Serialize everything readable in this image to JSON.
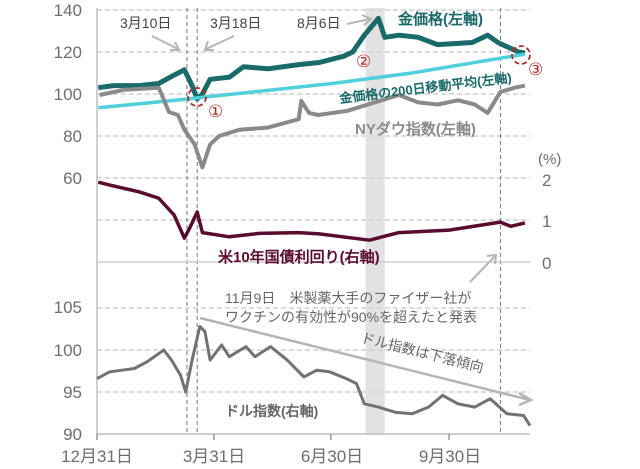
{
  "chart_data": {
    "type": "line",
    "grid": true,
    "x_axis": {
      "type": "date",
      "range": [
        "12/31",
        "12/2"
      ],
      "tick_labels": [
        "12月31日",
        "3月31日",
        "6月30日",
        "9月30日"
      ],
      "tick_dates": [
        "12/31",
        "3/31",
        "6/30",
        "9/30"
      ]
    },
    "left_axis": {
      "range": [
        20,
        140
      ],
      "tick_labels": [
        "140",
        "120",
        "100",
        "80",
        "60"
      ],
      "tick_values": [
        140,
        120,
        100,
        80,
        60
      ]
    },
    "right_axis": {
      "unit_label": "(%)",
      "range": [
        0,
        2
      ],
      "tick_labels": [
        "2",
        "1",
        "0"
      ],
      "tick_values": [
        2,
        1,
        0
      ]
    },
    "bottom_axis": {
      "range": [
        90,
        105
      ],
      "tick_labels": [
        "105",
        "100",
        "95",
        "90"
      ],
      "tick_values": [
        105,
        100,
        95,
        90
      ]
    },
    "series": [
      {
        "name": "金価格(左軸)",
        "axis": "left",
        "color": "#1b6a6a",
        "points": [
          [
            "1/1",
            103
          ],
          [
            "1/13",
            104
          ],
          [
            "2/2",
            104
          ],
          [
            "2/17",
            105
          ],
          [
            "2/29",
            109
          ],
          [
            "3/8",
            111.5
          ],
          [
            "3/14",
            104
          ],
          [
            "3/18",
            97.6
          ],
          [
            "3/22",
            100
          ],
          [
            "3/28",
            107
          ],
          [
            "4/12",
            108
          ],
          [
            "4/23",
            113
          ],
          [
            "5/12",
            112
          ],
          [
            "6/5",
            114
          ],
          [
            "6/21",
            115
          ],
          [
            "7/10",
            118
          ],
          [
            "7/17",
            120
          ],
          [
            "7/26",
            128
          ],
          [
            "8/6",
            136
          ],
          [
            "8/11",
            127
          ],
          [
            "8/22",
            128
          ],
          [
            "9/6",
            127
          ],
          [
            "9/21",
            123.5
          ],
          [
            "10/18",
            124.5
          ],
          [
            "10/30",
            128
          ],
          [
            "11/7",
            124.5
          ],
          [
            "11/23",
            120
          ],
          [
            "11/28",
            119.5
          ]
        ]
      },
      {
        "name": "金価格の200日移動平均(左軸)",
        "axis": "left",
        "color": "#4fd0da",
        "points": [
          [
            "1/1",
            93.5
          ],
          [
            "3/1",
            97
          ],
          [
            "5/1",
            101
          ],
          [
            "7/1",
            105
          ],
          [
            "9/1",
            110
          ],
          [
            "11/28",
            119
          ]
        ]
      },
      {
        "name": "NYダウ指数(左軸)",
        "axis": "left",
        "color": "#8a8a8a",
        "points": [
          [
            "1/2",
            99.5
          ],
          [
            "1/21",
            102
          ],
          [
            "2/17",
            103
          ],
          [
            "2/25",
            91.4
          ],
          [
            "3/3",
            90
          ],
          [
            "3/8",
            83
          ],
          [
            "3/16",
            76
          ],
          [
            "3/22",
            65
          ],
          [
            "3/28",
            76
          ],
          [
            "4/4",
            80
          ],
          [
            "4/20",
            83
          ],
          [
            "5/12",
            84
          ],
          [
            "6/5",
            88
          ],
          [
            "6/7",
            96.7
          ],
          [
            "6/13",
            91
          ],
          [
            "6/20",
            90
          ],
          [
            "7/13",
            92
          ],
          [
            "8/22",
            99.5
          ],
          [
            "9/6",
            96
          ],
          [
            "9/21",
            95
          ],
          [
            "10/7",
            97
          ],
          [
            "10/20",
            95
          ],
          [
            "10/30",
            91
          ],
          [
            "11/9",
            101
          ],
          [
            "11/20",
            103
          ],
          [
            "11/28",
            104
          ]
        ]
      },
      {
        "name": "米10年国債利回り(右軸)",
        "axis": "right",
        "color": "#5a0b30",
        "points": [
          [
            "1/1",
            1.9
          ],
          [
            "1/10",
            1.83
          ],
          [
            "2/2",
            1.67
          ],
          [
            "2/17",
            1.52
          ],
          [
            "2/29",
            1.12
          ],
          [
            "3/8",
            0.57
          ],
          [
            "3/12",
            0.8
          ],
          [
            "3/18",
            1.19
          ],
          [
            "3/22",
            0.7
          ],
          [
            "4/12",
            0.6
          ],
          [
            "5/5",
            0.68
          ],
          [
            "6/5",
            0.7
          ],
          [
            "6/21",
            0.67
          ],
          [
            "7/30",
            0.52
          ],
          [
            "8/22",
            0.7
          ],
          [
            "9/30",
            0.76
          ],
          [
            "11/9",
            0.95
          ],
          [
            "11/17",
            0.85
          ],
          [
            "11/28",
            0.93
          ]
        ]
      },
      {
        "name": "ドル指数(右軸)",
        "axis": "bottom",
        "color": "#727272",
        "points": [
          [
            "12/31",
            96.6
          ],
          [
            "1/10",
            97.4
          ],
          [
            "1/29",
            97.8
          ],
          [
            "2/8",
            98.6
          ],
          [
            "2/21",
            100
          ],
          [
            "2/27",
            98.8
          ],
          [
            "3/5",
            97
          ],
          [
            "3/9",
            95
          ],
          [
            "3/14",
            98.8
          ],
          [
            "3/20",
            102.8
          ],
          [
            "3/24",
            102.2
          ],
          [
            "3/28",
            98.8
          ],
          [
            "4/6",
            100.6
          ],
          [
            "4/12",
            99.2
          ],
          [
            "4/25",
            100.4
          ],
          [
            "5/2",
            99.2
          ],
          [
            "5/14",
            100.4
          ],
          [
            "5/27",
            98.8
          ],
          [
            "6/9",
            96.8
          ],
          [
            "6/19",
            97.6
          ],
          [
            "6/29",
            97.4
          ],
          [
            "7/12",
            96.6
          ],
          [
            "7/20",
            96
          ],
          [
            "7/26",
            93.6
          ],
          [
            "8/6",
            93.2
          ],
          [
            "8/19",
            92.6
          ],
          [
            "9/1",
            92.4
          ],
          [
            "9/14",
            93.2
          ],
          [
            "9/25",
            94.6
          ],
          [
            "10/7",
            93.6
          ],
          [
            "10/20",
            93.2
          ],
          [
            "11/1",
            94.2
          ],
          [
            "11/14",
            92.4
          ],
          [
            "11/27",
            92.2
          ],
          [
            "12/2",
            91
          ]
        ]
      }
    ],
    "event_lines": [
      "3/10",
      "3/18",
      "11/9"
    ],
    "highlight_band": [
      "7/27",
      "8/11"
    ],
    "annotations": {
      "mar10": "3月10日",
      "mar18": "3月18日",
      "aug6": "8月6日",
      "marker1": "①",
      "marker2": "②",
      "marker3": "③",
      "pfizer_line1": "11月9日　米製薬大手のファイザー社が",
      "pfizer_line2": "ワクチンの有効性が90%を超えたと発表",
      "dollar_trend": "ドル指数は下落傾向"
    }
  }
}
